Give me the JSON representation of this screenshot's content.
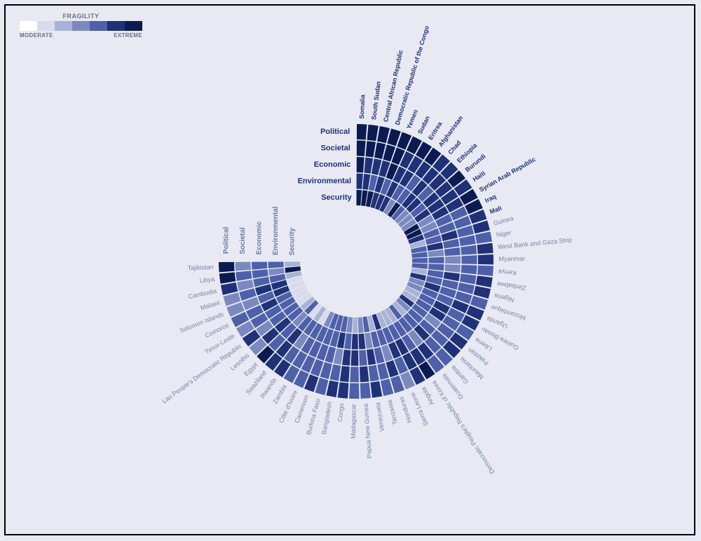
{
  "chart": {
    "type": "radial-heatmap",
    "background_color": "#e8e9f2",
    "frame_border_color": "#000000",
    "legend": {
      "title": "FRAGILITY",
      "low_label": "MODERATE",
      "high_label": "EXTREME",
      "colors": [
        "#ffffff",
        "#d8dbeb",
        "#a9b2d6",
        "#7b89bf",
        "#4d60a9",
        "#1f3277",
        "#0b1b52"
      ]
    },
    "dimensions_inner": [
      "Security",
      "Environmental",
      "Economic",
      "Societal",
      "Political"
    ],
    "dimensions_outer": [
      "Political",
      "Societal",
      "Economic",
      "Environmental",
      "Security"
    ],
    "dimension_label_color": "#1f3277",
    "dimension_label_fontsize": 11,
    "dimension_outer_label_color": "#6f79a8",
    "cell_gap_deg": 0.6,
    "ring_gap": 1.5,
    "inner_radius": 80,
    "ring_thickness": 22,
    "outer_chart_start_gap": 40,
    "countries_inner": [
      {
        "name": "Somalia",
        "bold": true,
        "v": [
          6,
          5,
          6,
          6,
          6
        ]
      },
      {
        "name": "South Sudan",
        "bold": true,
        "v": [
          6,
          5,
          5,
          6,
          6
        ]
      },
      {
        "name": "Central African Republic",
        "bold": true,
        "v": [
          6,
          4,
          5,
          6,
          6
        ]
      },
      {
        "name": "Democratic Republic of the Congo",
        "bold": true,
        "v": [
          5,
          5,
          5,
          6,
          6
        ]
      },
      {
        "name": "Yemen",
        "bold": true,
        "v": [
          5,
          4,
          6,
          6,
          6
        ]
      },
      {
        "name": "Sudan",
        "bold": true,
        "v": [
          5,
          5,
          5,
          5,
          6
        ]
      },
      {
        "name": "Eritrea",
        "bold": true,
        "v": [
          3,
          4,
          5,
          5,
          6
        ]
      },
      {
        "name": "Afghanistan",
        "bold": true,
        "v": [
          6,
          4,
          4,
          5,
          6
        ]
      },
      {
        "name": "Chad",
        "bold": true,
        "v": [
          4,
          5,
          5,
          5,
          5
        ]
      },
      {
        "name": "Ethiopia",
        "bold": true,
        "v": [
          3,
          5,
          4,
          5,
          5
        ]
      },
      {
        "name": "Burundi",
        "bold": true,
        "v": [
          3,
          4,
          5,
          5,
          6
        ]
      },
      {
        "name": "Haiti",
        "bold": true,
        "v": [
          3,
          5,
          5,
          5,
          5
        ]
      },
      {
        "name": "Syrian Arab Republic",
        "bold": true,
        "v": [
          6,
          3,
          5,
          5,
          6
        ]
      },
      {
        "name": "Iraq",
        "bold": true,
        "v": [
          6,
          3,
          4,
          4,
          6
        ]
      },
      {
        "name": "Mali",
        "bold": true,
        "v": [
          5,
          4,
          4,
          4,
          5
        ]
      },
      {
        "name": "Guinea",
        "bold": false,
        "v": [
          2,
          4,
          5,
          4,
          5
        ]
      },
      {
        "name": "Niger",
        "bold": false,
        "v": [
          4,
          5,
          4,
          4,
          4
        ]
      },
      {
        "name": "West Bank and Gaza Strip",
        "bold": false,
        "v": [
          4,
          3,
          4,
          4,
          5
        ]
      },
      {
        "name": "Myanmar",
        "bold": false,
        "v": [
          4,
          4,
          3,
          4,
          5
        ]
      },
      {
        "name": "Kenya",
        "bold": false,
        "v": [
          4,
          4,
          3,
          4,
          4
        ]
      },
      {
        "name": "Zimbabwe",
        "bold": false,
        "v": [
          2,
          4,
          5,
          4,
          5
        ]
      },
      {
        "name": "Nigeria",
        "bold": false,
        "v": [
          5,
          4,
          4,
          4,
          5
        ]
      },
      {
        "name": "Mozambique",
        "bold": false,
        "v": [
          3,
          5,
          4,
          4,
          4
        ]
      },
      {
        "name": "Uganda",
        "bold": false,
        "v": [
          3,
          4,
          4,
          5,
          5
        ]
      },
      {
        "name": "Guinea-Bissau",
        "bold": false,
        "v": [
          2,
          4,
          5,
          4,
          5
        ]
      },
      {
        "name": "Liberia",
        "bold": false,
        "v": [
          2,
          4,
          5,
          4,
          4
        ]
      },
      {
        "name": "Pakistan",
        "bold": false,
        "v": [
          5,
          4,
          3,
          4,
          5
        ]
      },
      {
        "name": "Mauritania",
        "bold": false,
        "v": [
          3,
          4,
          4,
          4,
          5
        ]
      },
      {
        "name": "Gambia",
        "bold": false,
        "v": [
          2,
          4,
          5,
          4,
          4
        ]
      },
      {
        "name": "Guatemala",
        "bold": false,
        "v": [
          4,
          4,
          3,
          5,
          4
        ]
      },
      {
        "name": "Democratic People's Republic of Korea",
        "bold": false,
        "v": [
          2,
          4,
          4,
          5,
          6
        ]
      },
      {
        "name": "Angola",
        "bold": false,
        "v": [
          2,
          4,
          5,
          5,
          5
        ]
      },
      {
        "name": "Sierra Leone",
        "bold": false,
        "v": [
          2,
          4,
          5,
          4,
          3
        ]
      },
      {
        "name": "Honduras",
        "bold": false,
        "v": [
          5,
          4,
          3,
          5,
          4
        ]
      },
      {
        "name": "Tanzania",
        "bold": false,
        "v": [
          2,
          4,
          4,
          4,
          4
        ]
      },
      {
        "name": "Venezuela",
        "bold": false,
        "v": [
          4,
          3,
          5,
          4,
          5
        ]
      },
      {
        "name": "Papua New Guinea",
        "bold": false,
        "v": [
          3,
          5,
          4,
          5,
          4
        ]
      },
      {
        "name": "Madagascar",
        "bold": false,
        "v": [
          2,
          5,
          5,
          4,
          4
        ]
      },
      {
        "name": "Congo",
        "bold": false,
        "v": [
          3,
          4,
          5,
          5,
          5
        ]
      },
      {
        "name": "Bangladesh",
        "bold": false,
        "v": [
          4,
          5,
          3,
          4,
          5
        ]
      },
      {
        "name": "Burkina Faso",
        "bold": false,
        "v": [
          4,
          4,
          4,
          4,
          4
        ]
      },
      {
        "name": "Cameroon",
        "bold": false,
        "v": [
          4,
          4,
          4,
          4,
          5
        ]
      },
      {
        "name": "Côte d'Ivoire",
        "bold": false,
        "v": [
          3,
          4,
          4,
          4,
          4
        ]
      },
      {
        "name": "Zambia",
        "bold": false,
        "v": [
          1,
          4,
          4,
          4,
          4
        ]
      },
      {
        "name": "Rwanda",
        "bold": false,
        "v": [
          2,
          4,
          3,
          4,
          5
        ]
      },
      {
        "name": "Swaziland",
        "bold": false,
        "v": [
          1,
          4,
          5,
          5,
          5
        ]
      },
      {
        "name": "Egypt",
        "bold": false,
        "v": [
          4,
          3,
          4,
          4,
          6
        ]
      },
      {
        "name": "Lesotho",
        "bold": false,
        "v": [
          2,
          4,
          5,
          5,
          3
        ]
      },
      {
        "name": "Lao People's Democratic Republic",
        "bold": false,
        "v": [
          1,
          4,
          4,
          3,
          5
        ]
      },
      {
        "name": "Timor-Leste",
        "bold": false,
        "v": [
          1,
          4,
          4,
          4,
          3
        ]
      },
      {
        "name": "Comoros",
        "bold": false,
        "v": [
          1,
          4,
          5,
          4,
          4
        ]
      },
      {
        "name": "Solomon Islands",
        "bold": false,
        "v": [
          1,
          5,
          4,
          3,
          3
        ]
      },
      {
        "name": "Malawi",
        "bold": false,
        "v": [
          1,
          5,
          5,
          4,
          3
        ]
      },
      {
        "name": "Cambodia",
        "bold": false,
        "v": [
          2,
          4,
          4,
          3,
          5
        ]
      },
      {
        "name": "Libya",
        "bold": false,
        "v": [
          6,
          3,
          4,
          4,
          6
        ]
      },
      {
        "name": "Tajikistan",
        "bold": false,
        "v": [
          2,
          4,
          4,
          3,
          6
        ]
      }
    ],
    "label_normal_color": "#7a82a8",
    "label_bold_color": "#1f3277",
    "label_fontsize": 9
  }
}
